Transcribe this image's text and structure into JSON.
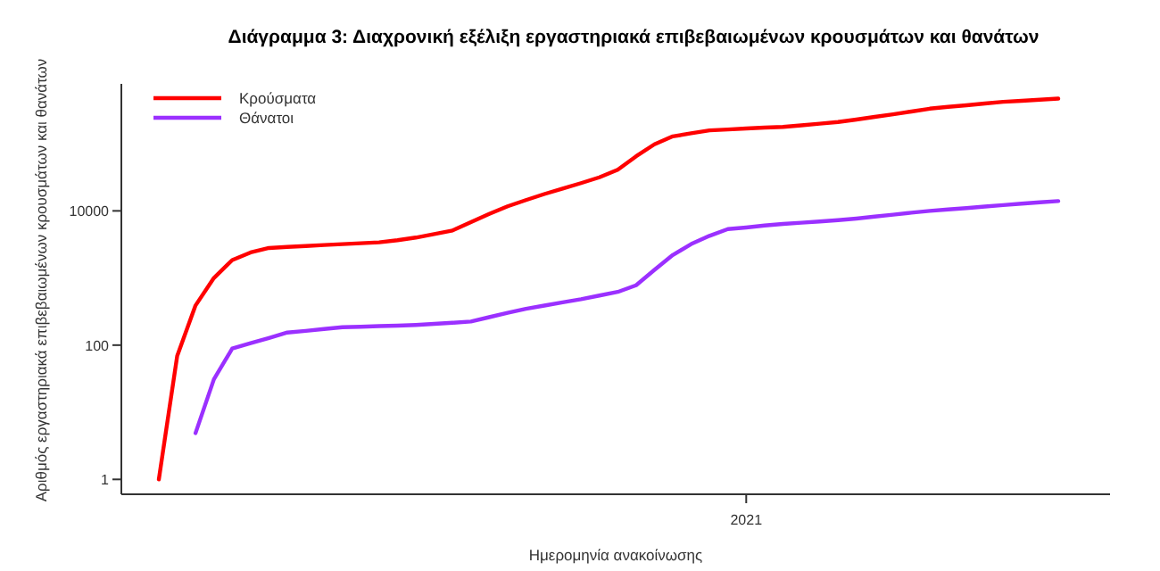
{
  "chart_data": {
    "type": "line",
    "title": "Διάγραμμα 3: Διαχρονική εξέλιξη εργαστηριακά επιβεβαιωμένων κρουσμάτων και θανάτων",
    "xlabel": "Ημερομηνία ανακοίνωσης",
    "ylabel": "Αριθμός εργαστηριακά επιβεβαιωμένων κρουσμάτων και θανάτων",
    "log": true,
    "legend": "top left",
    "line_style": "solid",
    "categories": [
      null,
      null,
      null,
      null,
      null,
      null,
      null,
      null,
      null,
      null,
      null,
      null,
      null,
      null,
      null,
      null,
      null,
      null,
      null,
      null,
      null,
      null,
      null,
      null,
      null,
      null,
      null,
      null,
      null,
      null,
      null,
      null,
      "2021",
      null,
      null,
      null,
      null,
      null,
      null,
      null,
      null,
      null,
      null,
      null,
      null,
      null,
      null,
      null,
      null,
      null
    ],
    "ylim": [
      0.6,
      780000
    ],
    "yticks": [
      1,
      100,
      10000
    ],
    "series": [
      {
        "name": "Κρούσματα",
        "color": "#ff0000",
        "values": [
          1,
          69,
          390,
          1000,
          1850,
          2400,
          2800,
          2900,
          3000,
          3100,
          3200,
          3300,
          3400,
          3650,
          4000,
          4500,
          5100,
          6800,
          9000,
          11700,
          14500,
          17800,
          21500,
          25900,
          31600,
          41000,
          65000,
          98000,
          129000,
          143000,
          158000,
          163000,
          169000,
          174000,
          178000,
          188000,
          199000,
          211000,
          229000,
          251000,
          275000,
          302000,
          333000,
          355000,
          374000,
          398000,
          421000,
          437000,
          453000,
          470000
        ]
      },
      {
        "name": "Θάνατοι",
        "color": "#9b30ff",
        "values": [
          null,
          null,
          4.9,
          31,
          89,
          107,
          128,
          154,
          163,
          174,
          185,
          188,
          192,
          195,
          200,
          207,
          215,
          225,
          261,
          302,
          348,
          388,
          434,
          484,
          548,
          620,
          780,
          1320,
          2200,
          3200,
          4250,
          5350,
          5650,
          6050,
          6400,
          6660,
          6960,
          7270,
          7680,
          8220,
          8790,
          9400,
          10000,
          10500,
          11000,
          11600,
          12200,
          12800,
          13400,
          14000
        ]
      }
    ]
  }
}
